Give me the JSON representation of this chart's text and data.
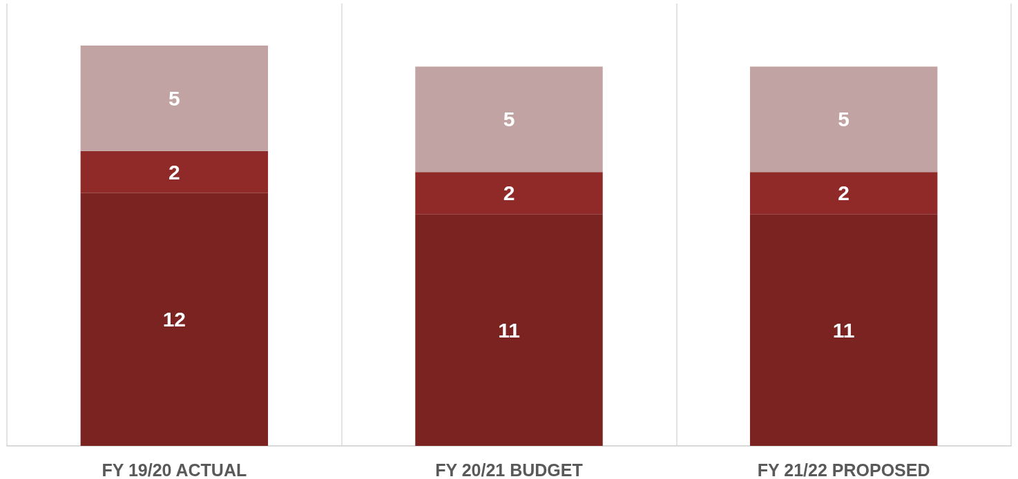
{
  "chart_data": {
    "type": "bar",
    "stacked": true,
    "data_labels": true,
    "grid": "x",
    "categories": [
      "FY 19/20 ACTUAL",
      "FY 20/21 BUDGET",
      "FY 21/22 PROPOSED"
    ],
    "series": [
      {
        "color": "#7a2320",
        "values": [
          12,
          11,
          11
        ]
      },
      {
        "color": "#8f2a28",
        "values": [
          2,
          2,
          2
        ]
      },
      {
        "color": "#c2a3a3",
        "values": [
          5,
          5,
          5
        ]
      }
    ]
  }
}
